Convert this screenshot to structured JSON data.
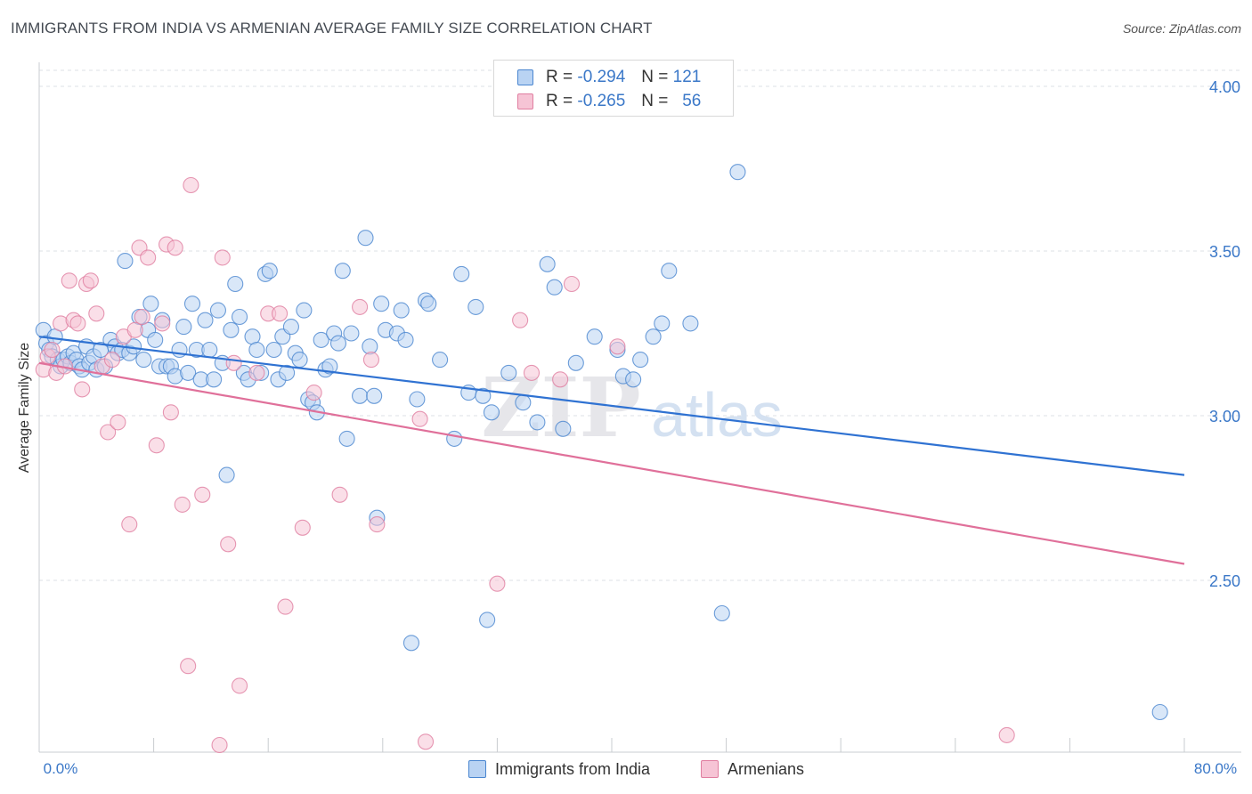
{
  "header": {
    "title": "IMMIGRANTS FROM INDIA VS ARMENIAN AVERAGE FAMILY SIZE CORRELATION CHART",
    "source": "Source: ZipAtlas.com"
  },
  "watermark": {
    "zip": "ZIP",
    "atlas": "atlas"
  },
  "colors": {
    "india_fill": "#b9d3f3",
    "india_stroke": "#4a86d0",
    "india_line": "#2f72d2",
    "armenian_fill": "#f6c4d5",
    "armenian_stroke": "#e07ea0",
    "armenian_line": "#e0709a",
    "tick_label": "#3b78c8",
    "grid": "#dde0e4"
  },
  "legend": {
    "india": {
      "r_label": "R =",
      "r_value": "-0.294",
      "n_label": "N =",
      "n_value": "121"
    },
    "armenian": {
      "r_label": "R =",
      "r_value": "-0.265",
      "n_label": "N =",
      "n_value": "56"
    }
  },
  "bottom_legend": {
    "india": "Immigrants from India",
    "armenian": "Armenians"
  },
  "chart_data": {
    "type": "scatter",
    "title": "IMMIGRANTS FROM INDIA VS ARMENIAN AVERAGE FAMILY SIZE CORRELATION CHART",
    "xlabel": "",
    "ylabel": "Average Family Size",
    "xlim": [
      0,
      80
    ],
    "ylim": [
      2.0,
      4.1
    ],
    "x_tick_labels": [
      "0.0%",
      "80.0%"
    ],
    "y_ticks": [
      2.5,
      3.0,
      3.5,
      4.0
    ],
    "y_tick_labels": [
      "2.50",
      "3.00",
      "3.50",
      "4.00"
    ],
    "grid": true,
    "legend_position": "top-center",
    "series": [
      {
        "name": "Immigrants from India",
        "r": -0.294,
        "n": 121,
        "trend": {
          "x": [
            0,
            80
          ],
          "y": [
            3.24,
            2.82
          ]
        },
        "points": [
          [
            0.3,
            3.26
          ],
          [
            0.5,
            3.22
          ],
          [
            0.7,
            3.2
          ],
          [
            0.9,
            3.18
          ],
          [
            1.1,
            3.24
          ],
          [
            1.3,
            3.17
          ],
          [
            1.5,
            3.15
          ],
          [
            1.7,
            3.17
          ],
          [
            2.0,
            3.18
          ],
          [
            2.2,
            3.16
          ],
          [
            2.4,
            3.19
          ],
          [
            2.6,
            3.17
          ],
          [
            2.8,
            3.15
          ],
          [
            3.0,
            3.14
          ],
          [
            3.3,
            3.21
          ],
          [
            3.5,
            3.16
          ],
          [
            3.8,
            3.18
          ],
          [
            4.0,
            3.14
          ],
          [
            4.3,
            3.2
          ],
          [
            4.6,
            3.15
          ],
          [
            5.0,
            3.23
          ],
          [
            5.3,
            3.21
          ],
          [
            5.5,
            3.19
          ],
          [
            5.8,
            3.2
          ],
          [
            6.0,
            3.47
          ],
          [
            6.3,
            3.19
          ],
          [
            6.6,
            3.21
          ],
          [
            7.0,
            3.3
          ],
          [
            7.3,
            3.17
          ],
          [
            7.6,
            3.26
          ],
          [
            7.8,
            3.34
          ],
          [
            8.1,
            3.23
          ],
          [
            8.4,
            3.15
          ],
          [
            8.6,
            3.29
          ],
          [
            8.9,
            3.15
          ],
          [
            9.2,
            3.15
          ],
          [
            9.5,
            3.12
          ],
          [
            9.8,
            3.2
          ],
          [
            10.1,
            3.27
          ],
          [
            10.4,
            3.13
          ],
          [
            10.7,
            3.34
          ],
          [
            11.0,
            3.2
          ],
          [
            11.3,
            3.11
          ],
          [
            11.6,
            3.29
          ],
          [
            11.9,
            3.2
          ],
          [
            12.2,
            3.11
          ],
          [
            12.5,
            3.32
          ],
          [
            12.8,
            3.16
          ],
          [
            13.1,
            2.82
          ],
          [
            13.4,
            3.26
          ],
          [
            13.7,
            3.4
          ],
          [
            14.0,
            3.3
          ],
          [
            14.3,
            3.13
          ],
          [
            14.6,
            3.11
          ],
          [
            14.9,
            3.24
          ],
          [
            15.2,
            3.2
          ],
          [
            15.5,
            3.13
          ],
          [
            15.8,
            3.43
          ],
          [
            16.1,
            3.44
          ],
          [
            16.4,
            3.2
          ],
          [
            16.7,
            3.11
          ],
          [
            17.0,
            3.24
          ],
          [
            17.3,
            3.13
          ],
          [
            17.6,
            3.27
          ],
          [
            17.9,
            3.19
          ],
          [
            18.2,
            3.17
          ],
          [
            18.5,
            3.32
          ],
          [
            18.8,
            3.05
          ],
          [
            19.1,
            3.04
          ],
          [
            19.4,
            3.01
          ],
          [
            19.7,
            3.23
          ],
          [
            20.0,
            3.14
          ],
          [
            20.3,
            3.15
          ],
          [
            20.6,
            3.25
          ],
          [
            20.9,
            3.22
          ],
          [
            21.2,
            3.44
          ],
          [
            21.5,
            2.93
          ],
          [
            21.8,
            3.25
          ],
          [
            22.4,
            3.06
          ],
          [
            22.8,
            3.54
          ],
          [
            23.1,
            3.21
          ],
          [
            23.4,
            3.06
          ],
          [
            23.6,
            2.69
          ],
          [
            23.9,
            3.34
          ],
          [
            24.2,
            3.26
          ],
          [
            25.0,
            3.25
          ],
          [
            25.3,
            3.32
          ],
          [
            25.6,
            3.23
          ],
          [
            26.0,
            2.31
          ],
          [
            26.4,
            3.05
          ],
          [
            27.0,
            3.35
          ],
          [
            27.2,
            3.34
          ],
          [
            28.0,
            3.17
          ],
          [
            29.0,
            2.93
          ],
          [
            29.5,
            3.43
          ],
          [
            30.0,
            3.07
          ],
          [
            30.5,
            3.33
          ],
          [
            31.0,
            3.06
          ],
          [
            31.3,
            2.38
          ],
          [
            31.6,
            3.01
          ],
          [
            32.8,
            3.13
          ],
          [
            33.8,
            3.04
          ],
          [
            34.8,
            2.98
          ],
          [
            35.5,
            3.46
          ],
          [
            36.0,
            3.39
          ],
          [
            36.6,
            2.96
          ],
          [
            37.5,
            3.16
          ],
          [
            38.8,
            3.24
          ],
          [
            40.4,
            3.2
          ],
          [
            40.8,
            3.12
          ],
          [
            41.5,
            3.11
          ],
          [
            42.0,
            3.17
          ],
          [
            42.9,
            3.24
          ],
          [
            43.5,
            3.28
          ],
          [
            44.0,
            3.44
          ],
          [
            45.5,
            3.28
          ],
          [
            47.7,
            2.4
          ],
          [
            48.8,
            3.74
          ],
          [
            78.3,
            2.1
          ]
        ]
      },
      {
        "name": "Armenians",
        "r": -0.265,
        "n": 56,
        "trend": {
          "x": [
            0,
            80
          ],
          "y": [
            3.16,
            2.55
          ]
        },
        "points": [
          [
            0.3,
            3.14
          ],
          [
            0.6,
            3.18
          ],
          [
            0.9,
            3.2
          ],
          [
            1.2,
            3.13
          ],
          [
            1.5,
            3.28
          ],
          [
            1.8,
            3.15
          ],
          [
            2.1,
            3.41
          ],
          [
            2.4,
            3.29
          ],
          [
            2.7,
            3.28
          ],
          [
            3.0,
            3.08
          ],
          [
            3.3,
            3.4
          ],
          [
            3.6,
            3.41
          ],
          [
            4.0,
            3.31
          ],
          [
            4.4,
            3.15
          ],
          [
            4.8,
            2.95
          ],
          [
            5.1,
            3.17
          ],
          [
            5.5,
            2.98
          ],
          [
            5.9,
            3.24
          ],
          [
            6.3,
            2.67
          ],
          [
            6.7,
            3.26
          ],
          [
            7.0,
            3.51
          ],
          [
            7.2,
            3.3
          ],
          [
            7.6,
            3.48
          ],
          [
            8.2,
            2.91
          ],
          [
            8.6,
            3.28
          ],
          [
            8.9,
            3.52
          ],
          [
            9.2,
            3.01
          ],
          [
            9.5,
            3.51
          ],
          [
            10.0,
            2.73
          ],
          [
            10.4,
            2.24
          ],
          [
            10.6,
            3.7
          ],
          [
            11.4,
            2.76
          ],
          [
            12.6,
            2.0
          ],
          [
            12.8,
            3.48
          ],
          [
            13.2,
            2.61
          ],
          [
            13.6,
            3.16
          ],
          [
            14.0,
            2.18
          ],
          [
            15.2,
            3.13
          ],
          [
            16.0,
            3.31
          ],
          [
            16.8,
            3.31
          ],
          [
            17.2,
            2.42
          ],
          [
            18.4,
            2.66
          ],
          [
            19.2,
            3.07
          ],
          [
            21.0,
            2.76
          ],
          [
            22.4,
            3.33
          ],
          [
            23.2,
            3.17
          ],
          [
            23.6,
            2.67
          ],
          [
            26.6,
            2.99
          ],
          [
            27.0,
            2.01
          ],
          [
            32.0,
            2.49
          ],
          [
            33.6,
            3.29
          ],
          [
            34.4,
            3.13
          ],
          [
            36.4,
            3.11
          ],
          [
            37.2,
            3.4
          ],
          [
            40.4,
            3.21
          ],
          [
            67.6,
            2.03
          ]
        ]
      }
    ]
  }
}
